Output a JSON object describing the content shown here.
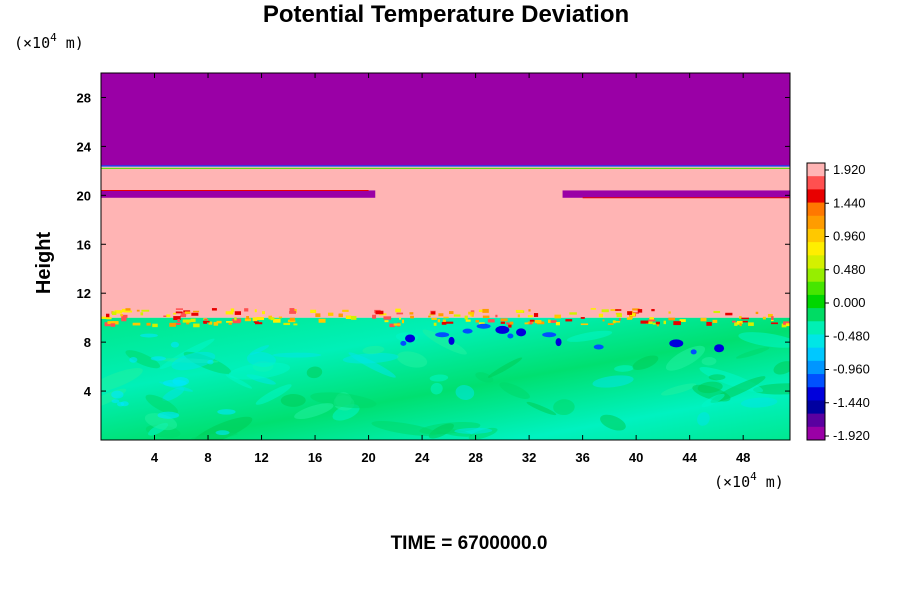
{
  "chart_data": {
    "type": "heatmap",
    "title": "Potential Temperature Deviation",
    "ylabel": "Height",
    "xlabel": "",
    "y_unit": "(×10",
    "y_unit_exp": "4",
    "y_unit_tail": " m)",
    "x_unit": "(×10",
    "x_unit_exp": "4",
    "x_unit_tail": " m)",
    "xlim": [
      0,
      51.5
    ],
    "ylim": [
      0,
      30
    ],
    "x_ticks": [
      "4",
      "8",
      "12",
      "16",
      "20",
      "24",
      "28",
      "32",
      "36",
      "40",
      "44",
      "48"
    ],
    "x_tick_values": [
      4,
      8,
      12,
      16,
      20,
      24,
      28,
      32,
      36,
      40,
      44,
      48
    ],
    "y_ticks": [
      "4",
      "8",
      "12",
      "16",
      "20",
      "24",
      "28"
    ],
    "y_tick_values": [
      4,
      8,
      12,
      16,
      20,
      24,
      28
    ],
    "colorbar_labels": [
      "1.920",
      "1.440",
      "0.960",
      "0.480",
      "0.000",
      "-0.480",
      "-0.960",
      "-1.440",
      "-1.920"
    ],
    "colorbar_values": [
      1.92,
      1.44,
      0.96,
      0.48,
      0.0,
      -0.48,
      -0.96,
      -1.44,
      -1.92
    ],
    "colorbar_colors": [
      "#ffb4b4",
      "#ff5050",
      "#e80000",
      "#ff7800",
      "#ff9c00",
      "#ffc800",
      "#ffee00",
      "#d4f000",
      "#96ee00",
      "#46e600",
      "#00d600",
      "#00dc64",
      "#00f0b4",
      "#00e6e6",
      "#00c8ff",
      "#0096ff",
      "#0050ff",
      "#0000dc",
      "#0000a0",
      "#5a00a0",
      "#9a00a6"
    ],
    "regions": [
      {
        "name": "lower-layer",
        "y_from": 0,
        "y_to": 10,
        "value": -0.3
      },
      {
        "name": "middle-layer",
        "y_from": 10,
        "y_to": 22.4,
        "value": 1.92
      },
      {
        "name": "thin-band",
        "y_from": 19.8,
        "y_to": 20.4,
        "value": -1.92
      },
      {
        "name": "upper-layer",
        "y_from": 22.4,
        "y_to": 30,
        "value": -1.92
      }
    ],
    "time_label": "TIME = 6700000.0"
  }
}
